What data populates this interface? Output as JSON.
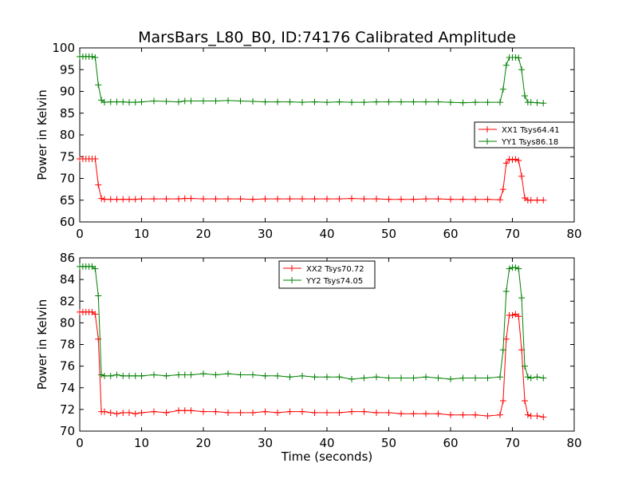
{
  "title": "MarsBars_L80_B0, ID:74176 Calibrated Amplitude",
  "colors": {
    "xx": "#ff0000",
    "yy": "#008000",
    "axes": "#000000",
    "background": "#ffffff"
  },
  "chart_data": [
    {
      "type": "line",
      "title": "MarsBars_L80_B0, ID:74176 Calibrated Amplitude",
      "xlabel": "",
      "ylabel": "Power in Kelvin",
      "xlim": [
        0,
        80
      ],
      "ylim": [
        60,
        100
      ],
      "xticks": [
        0,
        10,
        20,
        30,
        40,
        50,
        60,
        70,
        80
      ],
      "yticks": [
        60,
        65,
        70,
        75,
        80,
        85,
        90,
        95,
        100
      ],
      "grid": false,
      "legend": "center-right",
      "series": [
        {
          "name": "XX1 Tsys64.41",
          "color": "#ff0000",
          "marker": "+",
          "x": [
            0,
            0.5,
            1,
            1.5,
            2,
            2.5,
            3,
            3.5,
            4,
            5,
            6,
            7,
            8,
            9,
            10,
            12,
            14,
            16,
            17,
            18,
            20,
            22,
            24,
            26,
            28,
            30,
            32,
            34,
            36,
            38,
            40,
            42,
            44,
            46,
            48,
            50,
            52,
            54,
            56,
            58,
            60,
            62,
            64,
            66,
            68,
            68.5,
            69,
            69.5,
            70,
            70.5,
            71,
            71.5,
            72,
            72.5,
            73,
            74,
            75
          ],
          "y": [
            74.5,
            74.5,
            74.5,
            74.5,
            74.5,
            74.5,
            68.5,
            65.4,
            65.2,
            65.2,
            65.2,
            65.2,
            65.2,
            65.2,
            65.3,
            65.3,
            65.3,
            65.3,
            65.4,
            65.4,
            65.3,
            65.3,
            65.3,
            65.3,
            65.2,
            65.3,
            65.3,
            65.3,
            65.3,
            65.3,
            65.3,
            65.3,
            65.4,
            65.3,
            65.3,
            65.2,
            65.2,
            65.2,
            65.3,
            65.3,
            65.2,
            65.2,
            65.2,
            65.2,
            65.1,
            67.5,
            73.5,
            74.4,
            74.3,
            74.4,
            74.1,
            70.5,
            65.5,
            65.0,
            65.0,
            65.0,
            65.0
          ]
        },
        {
          "name": "YY1 Tsys86.18",
          "color": "#008000",
          "marker": "+",
          "x": [
            0,
            0.5,
            1,
            1.5,
            2,
            2.5,
            3,
            3.5,
            4,
            5,
            6,
            7,
            8,
            9,
            10,
            12,
            14,
            16,
            17,
            18,
            20,
            22,
            24,
            26,
            28,
            30,
            32,
            34,
            36,
            38,
            40,
            42,
            44,
            46,
            48,
            50,
            52,
            54,
            56,
            58,
            60,
            62,
            64,
            66,
            68,
            68.5,
            69,
            69.5,
            70,
            70.5,
            71,
            71.5,
            72,
            72.5,
            73,
            74,
            75
          ],
          "y": [
            98.0,
            98.0,
            98.0,
            98.0,
            98.0,
            97.8,
            91.5,
            88.0,
            87.5,
            87.6,
            87.6,
            87.6,
            87.5,
            87.5,
            87.6,
            87.8,
            87.7,
            87.6,
            87.8,
            87.8,
            87.8,
            87.8,
            87.9,
            87.8,
            87.7,
            87.6,
            87.6,
            87.6,
            87.5,
            87.6,
            87.5,
            87.6,
            87.5,
            87.5,
            87.6,
            87.6,
            87.6,
            87.6,
            87.6,
            87.6,
            87.5,
            87.4,
            87.5,
            87.5,
            87.5,
            90.5,
            96.0,
            97.8,
            97.8,
            97.8,
            97.7,
            95.0,
            89.0,
            87.5,
            87.5,
            87.4,
            87.3
          ]
        }
      ]
    },
    {
      "type": "line",
      "title": "",
      "xlabel": "Time (seconds)",
      "ylabel": "Power in Kelvin",
      "xlim": [
        0,
        80
      ],
      "ylim": [
        70,
        86
      ],
      "xticks": [
        0,
        10,
        20,
        30,
        40,
        50,
        60,
        70,
        80
      ],
      "yticks": [
        70,
        72,
        74,
        76,
        78,
        80,
        82,
        84,
        86
      ],
      "grid": false,
      "legend": "top-center",
      "series": [
        {
          "name": "XX2 Tsys70.72",
          "color": "#ff0000",
          "marker": "+",
          "x": [
            0,
            0.5,
            1,
            1.5,
            2,
            2.5,
            3,
            3.5,
            4,
            5,
            6,
            7,
            8,
            9,
            10,
            12,
            14,
            16,
            17,
            18,
            20,
            22,
            24,
            26,
            28,
            30,
            32,
            34,
            36,
            38,
            40,
            42,
            44,
            46,
            48,
            50,
            52,
            54,
            56,
            58,
            60,
            62,
            64,
            66,
            68,
            68.5,
            69,
            69.5,
            70,
            70.5,
            71,
            71.5,
            72,
            72.5,
            73,
            74,
            75
          ],
          "y": [
            81.0,
            81.0,
            81.0,
            81.0,
            81.0,
            80.8,
            78.5,
            71.8,
            71.8,
            71.7,
            71.6,
            71.7,
            71.7,
            71.6,
            71.7,
            71.8,
            71.7,
            71.9,
            71.9,
            71.9,
            71.8,
            71.8,
            71.7,
            71.7,
            71.7,
            71.8,
            71.7,
            71.8,
            71.8,
            71.7,
            71.7,
            71.7,
            71.8,
            71.8,
            71.7,
            71.7,
            71.6,
            71.6,
            71.6,
            71.6,
            71.5,
            71.5,
            71.5,
            71.4,
            71.5,
            72.8,
            78.5,
            80.7,
            80.7,
            80.8,
            80.6,
            77.5,
            72.8,
            71.5,
            71.4,
            71.4,
            71.3
          ]
        },
        {
          "name": "YY2 Tsys74.05",
          "color": "#008000",
          "marker": "+",
          "x": [
            0,
            0.5,
            1,
            1.5,
            2,
            2.5,
            3,
            3.5,
            4,
            5,
            6,
            7,
            8,
            9,
            10,
            12,
            14,
            16,
            17,
            18,
            20,
            22,
            24,
            26,
            28,
            30,
            32,
            34,
            36,
            38,
            40,
            42,
            44,
            46,
            48,
            50,
            52,
            54,
            56,
            58,
            60,
            62,
            64,
            66,
            68,
            68.5,
            69,
            69.5,
            70,
            70.5,
            71,
            71.5,
            72,
            72.5,
            73,
            74,
            75
          ],
          "y": [
            85.2,
            85.2,
            85.2,
            85.2,
            85.2,
            85.0,
            82.5,
            75.2,
            75.1,
            75.1,
            75.2,
            75.1,
            75.1,
            75.1,
            75.1,
            75.2,
            75.1,
            75.2,
            75.2,
            75.2,
            75.3,
            75.2,
            75.3,
            75.2,
            75.2,
            75.1,
            75.1,
            75.0,
            75.1,
            75.0,
            75.0,
            75.0,
            74.8,
            74.9,
            75.0,
            74.9,
            74.9,
            74.9,
            75.0,
            74.9,
            74.8,
            74.9,
            74.9,
            74.9,
            75.0,
            77.5,
            82.9,
            85.0,
            85.1,
            85.1,
            85.0,
            82.3,
            76.0,
            75.0,
            74.9,
            75.0,
            74.9
          ]
        }
      ]
    }
  ]
}
